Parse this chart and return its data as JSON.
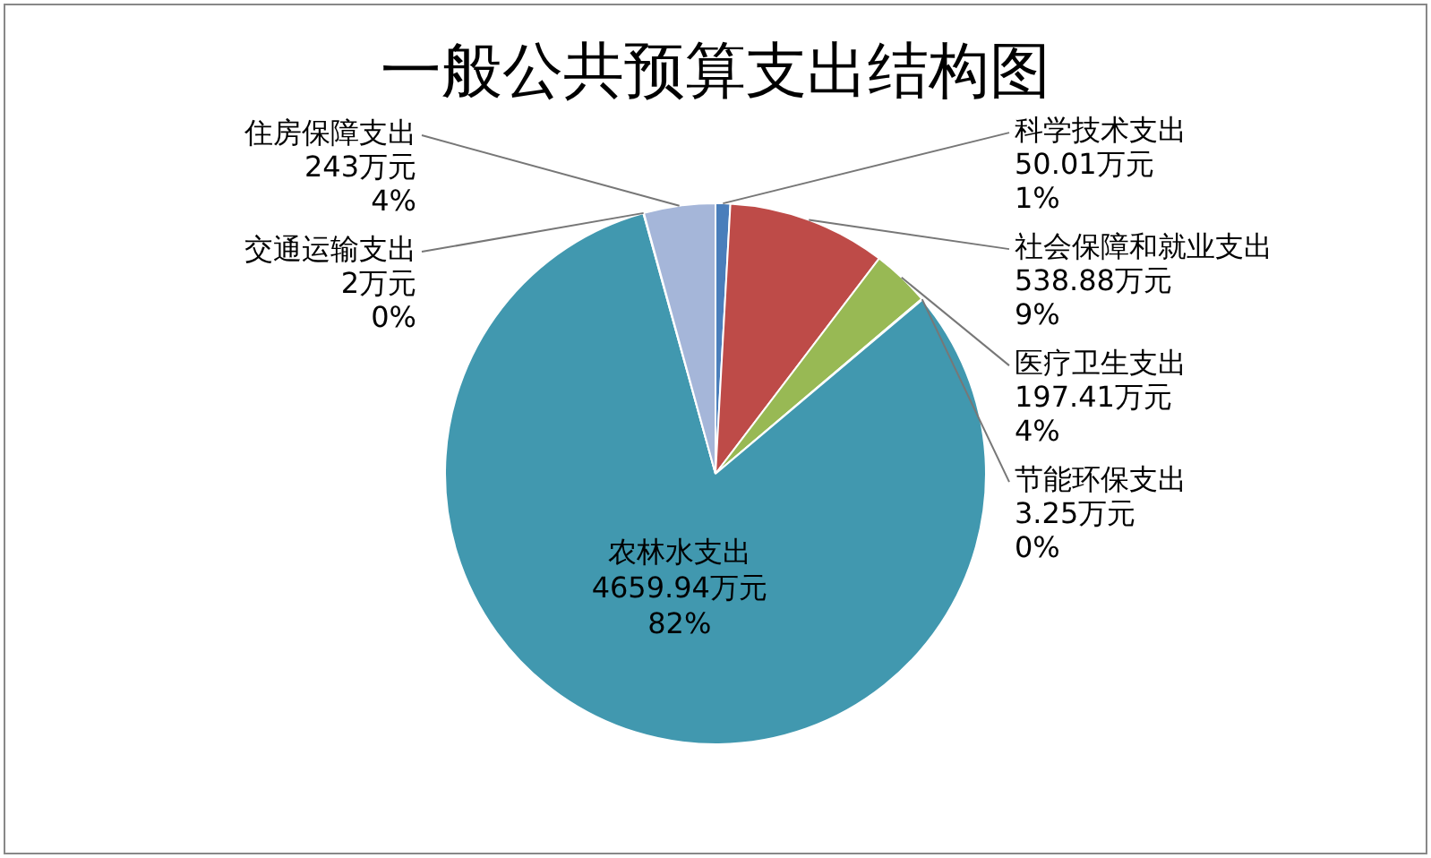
{
  "chart_data": {
    "type": "pie",
    "title": "一般公共预算支出结构图",
    "categories": [
      "科学技术支出",
      "社会保障和就业支出",
      "医疗卫生支出",
      "节能环保支出",
      "农林水支出",
      "交通运输支出",
      "住房保障支出"
    ],
    "values": [
      50.01,
      538.88,
      197.41,
      3.25,
      4659.94,
      2,
      243
    ],
    "colors": [
      "#4a7ebb",
      "#be4b48",
      "#98b954",
      "#f59d56",
      "#4198af",
      "#2c4d75",
      "#a5b6d9"
    ],
    "value_labels": [
      "50.01万元\n1%",
      "538.88万元\n9%",
      "197.41万元\n4%",
      "3.25万元\n0%",
      "4659.94万元\n82%",
      "2万元\n0%",
      "243万元\n4%"
    ],
    "legend": false
  }
}
